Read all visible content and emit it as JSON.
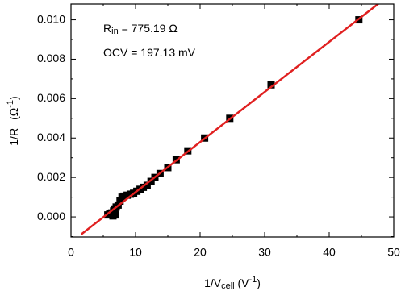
{
  "chart_data": {
    "type": "scatter",
    "annotations": [
      [
        "R",
        "in",
        " = 775.19 Ω"
      ],
      [
        "OCV = 197.13 mV"
      ]
    ],
    "x_label": [
      "1/V",
      "cell",
      " (V",
      "-1",
      ")"
    ],
    "y_label": [
      "1/R",
      "L",
      " (Ω",
      "-1",
      ")"
    ],
    "xlim": [
      0,
      50
    ],
    "xticks": [
      0,
      10,
      20,
      30,
      40,
      50
    ],
    "xminorticks": [
      5,
      15,
      25,
      35,
      45
    ],
    "ylim": [
      -0.00102,
      0.0108
    ],
    "yticks": [
      {
        "value": 0,
        "label": "0.000"
      },
      {
        "value": 0.002,
        "label": "0.002"
      },
      {
        "value": 0.004,
        "label": "0.004"
      },
      {
        "value": 0.006,
        "label": "0.006"
      },
      {
        "value": 0.008,
        "label": "0.008"
      },
      {
        "value": 0.01,
        "label": "0.010"
      }
    ],
    "yminorticks": [
      -0.001,
      0.001,
      0.003,
      0.005,
      0.007,
      0.009
    ],
    "series": [
      {
        "kind": "points",
        "color": "#000000",
        "x": [
          44.6,
          31.0,
          24.6,
          20.7,
          18.1,
          16.3,
          15.0,
          13.8,
          13.0,
          12.4,
          11.8,
          11.2,
          10.7,
          10.2,
          9.7,
          9.2,
          8.7,
          8.2,
          7.9,
          7.6,
          7.3,
          7.0,
          6.8,
          6.6,
          6.3,
          6.0,
          5.7,
          6.5,
          6.9
        ],
        "values": [
          0.01,
          0.0067,
          0.005,
          0.004,
          0.00335,
          0.0029,
          0.0025,
          0.0022,
          0.002,
          0.0018,
          0.0016,
          0.0015,
          0.0014,
          0.0013,
          0.0012,
          0.00115,
          0.0011,
          0.00105,
          0.001,
          0.0008,
          0.0006,
          0.0005,
          0.0004,
          0.0003,
          0.0002,
          0.00015,
          0.0001,
          5e-05,
          0.0001
        ]
      },
      {
        "kind": "line",
        "color": "#e02020",
        "x": [
          1.6,
          47.6
        ],
        "values": [
          -0.00088,
          0.01081
        ]
      }
    ]
  }
}
